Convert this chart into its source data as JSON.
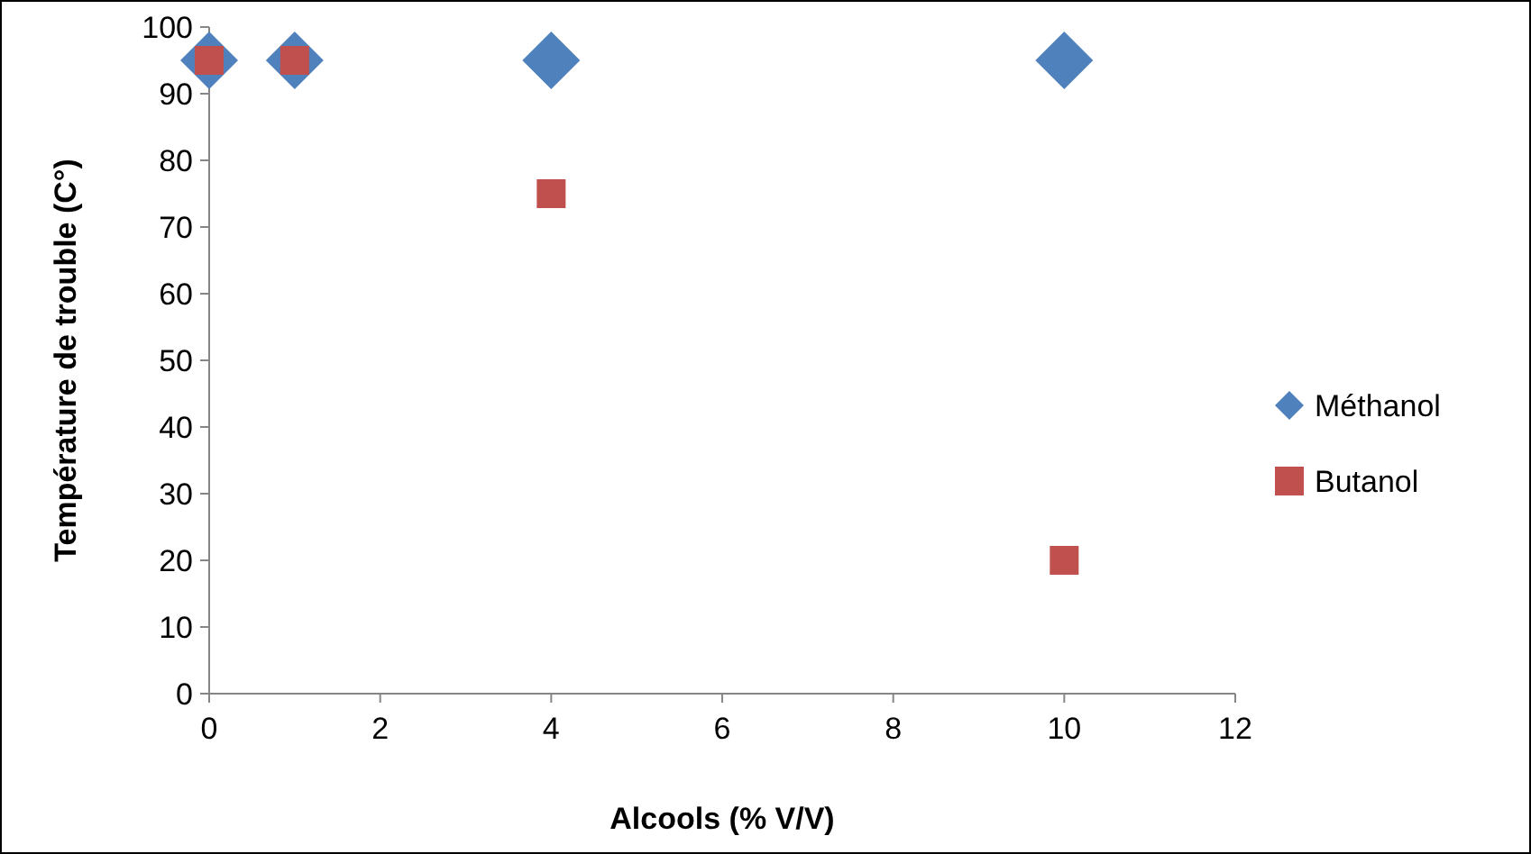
{
  "chart_data": {
    "type": "scatter",
    "xlabel": "Alcools (% V/V)",
    "ylabel": "Température de trouble (C°)",
    "x": [
      0,
      1,
      4,
      10
    ],
    "series": [
      {
        "name": "Méthanol",
        "color": "#4f81bd",
        "values": [
          95,
          95,
          95,
          95
        ],
        "marker": "diamond"
      },
      {
        "name": "Butanol",
        "color": "#c0504d",
        "values": [
          95,
          95,
          75,
          20
        ],
        "marker": "square"
      }
    ],
    "xlim": [
      0,
      12
    ],
    "xticks": [
      0,
      2,
      4,
      6,
      8,
      10,
      12
    ],
    "ylim": [
      0,
      100
    ],
    "yticks": [
      0,
      10,
      20,
      30,
      40,
      50,
      60,
      70,
      80,
      90,
      100
    ],
    "grid": false,
    "legend": "right"
  }
}
